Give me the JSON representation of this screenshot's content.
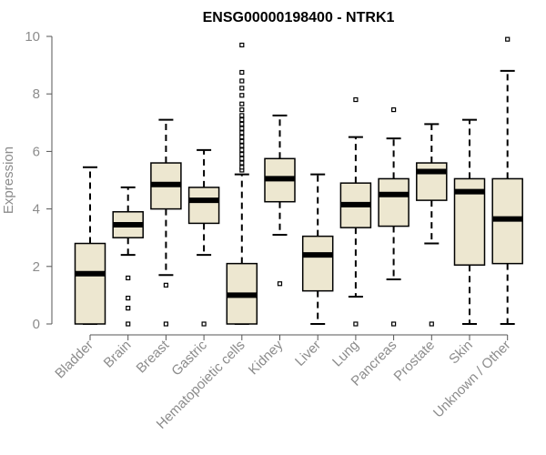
{
  "chart_data": {
    "type": "boxplot",
    "title": "ENSG00000198400 - NTRK1",
    "ylabel": "Expression",
    "xlabel": "",
    "ylim": [
      0,
      10
    ],
    "yticks": [
      0,
      2,
      4,
      6,
      8,
      10
    ],
    "grid": false,
    "box_fill": "#ede7d0",
    "categories": [
      {
        "name": "Bladder",
        "whisker_low": 0,
        "q1": 0,
        "median": 1.75,
        "q3": 2.8,
        "whisker_high": 5.45,
        "outliers": []
      },
      {
        "name": "Brain",
        "whisker_low": 2.4,
        "q1": 3.0,
        "median": 3.45,
        "q3": 3.9,
        "whisker_high": 4.75,
        "outliers": [
          1.6,
          0.9,
          0.55,
          0
        ]
      },
      {
        "name": "Breast",
        "whisker_low": 1.7,
        "q1": 4.0,
        "median": 4.85,
        "q3": 5.6,
        "whisker_high": 7.1,
        "outliers": [
          1.35,
          0
        ]
      },
      {
        "name": "Gastric",
        "whisker_low": 2.4,
        "q1": 3.5,
        "median": 4.3,
        "q3": 4.75,
        "whisker_high": 6.05,
        "outliers": [
          0
        ]
      },
      {
        "name": "Hematopoietic cells",
        "whisker_low": 0,
        "q1": 0,
        "median": 1.0,
        "q3": 2.1,
        "whisker_high": 5.2,
        "outliers": [
          5.35,
          5.45,
          5.6,
          5.75,
          5.9,
          6.05,
          6.2,
          6.35,
          6.5,
          6.65,
          6.8,
          6.95,
          7.1,
          7.25,
          7.45,
          7.65,
          7.95,
          8.2,
          8.45,
          8.75,
          9.7
        ]
      },
      {
        "name": "Kidney",
        "whisker_low": 3.1,
        "q1": 4.25,
        "median": 5.05,
        "q3": 5.75,
        "whisker_high": 7.25,
        "outliers": [
          1.4
        ]
      },
      {
        "name": "Liver",
        "whisker_low": 0,
        "q1": 1.15,
        "median": 2.4,
        "q3": 3.05,
        "whisker_high": 5.2,
        "outliers": []
      },
      {
        "name": "Lung",
        "whisker_low": 0.95,
        "q1": 3.35,
        "median": 4.15,
        "q3": 4.9,
        "whisker_high": 6.5,
        "outliers": [
          7.8,
          0
        ]
      },
      {
        "name": "Pancreas",
        "whisker_low": 1.55,
        "q1": 3.4,
        "median": 4.5,
        "q3": 5.05,
        "whisker_high": 6.45,
        "outliers": [
          7.45,
          0
        ]
      },
      {
        "name": "Prostate",
        "whisker_low": 2.8,
        "q1": 4.3,
        "median": 5.3,
        "q3": 5.6,
        "whisker_high": 6.95,
        "outliers": [
          0
        ]
      },
      {
        "name": "Skin",
        "whisker_low": 0,
        "q1": 2.05,
        "median": 4.6,
        "q3": 5.05,
        "whisker_high": 7.1,
        "outliers": []
      },
      {
        "name": "Unknown / Other",
        "whisker_low": 0,
        "q1": 2.1,
        "median": 3.65,
        "q3": 5.05,
        "whisker_high": 8.8,
        "outliers": [
          9.9
        ]
      }
    ]
  }
}
